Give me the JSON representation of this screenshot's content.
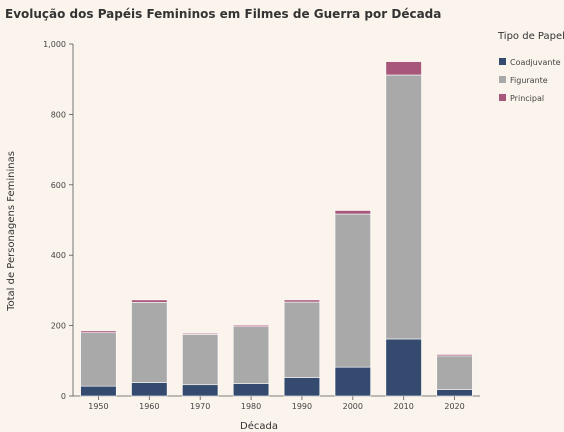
{
  "chart_data": {
    "type": "bar",
    "stacked": true,
    "title": "Evolução dos Papéis Femininos em Filmes de Guerra por Década",
    "xlabel": "Década",
    "ylabel": "Total de Personagens Femininas",
    "categories": [
      "1950",
      "1960",
      "1970",
      "1980",
      "1990",
      "2000",
      "2010",
      "2020"
    ],
    "series": [
      {
        "name": "Coadjuvante",
        "color": "#344a6e",
        "values": [
          28,
          38,
          32,
          35,
          52,
          82,
          162,
          18
        ]
      },
      {
        "name": "Figurante",
        "color": "#a9a9a9",
        "values": [
          152,
          228,
          143,
          162,
          215,
          435,
          750,
          96
        ]
      },
      {
        "name": "Principal",
        "color": "#a8567a",
        "values": [
          5,
          7,
          3,
          4,
          6,
          10,
          38,
          4
        ]
      }
    ],
    "yticks": [
      "0",
      "200",
      "400",
      "600",
      "800",
      "1,000"
    ],
    "ylim": [
      0,
      1000
    ],
    "legend_title": "Tipo de Papel",
    "legend_position": "right",
    "grid": false
  }
}
